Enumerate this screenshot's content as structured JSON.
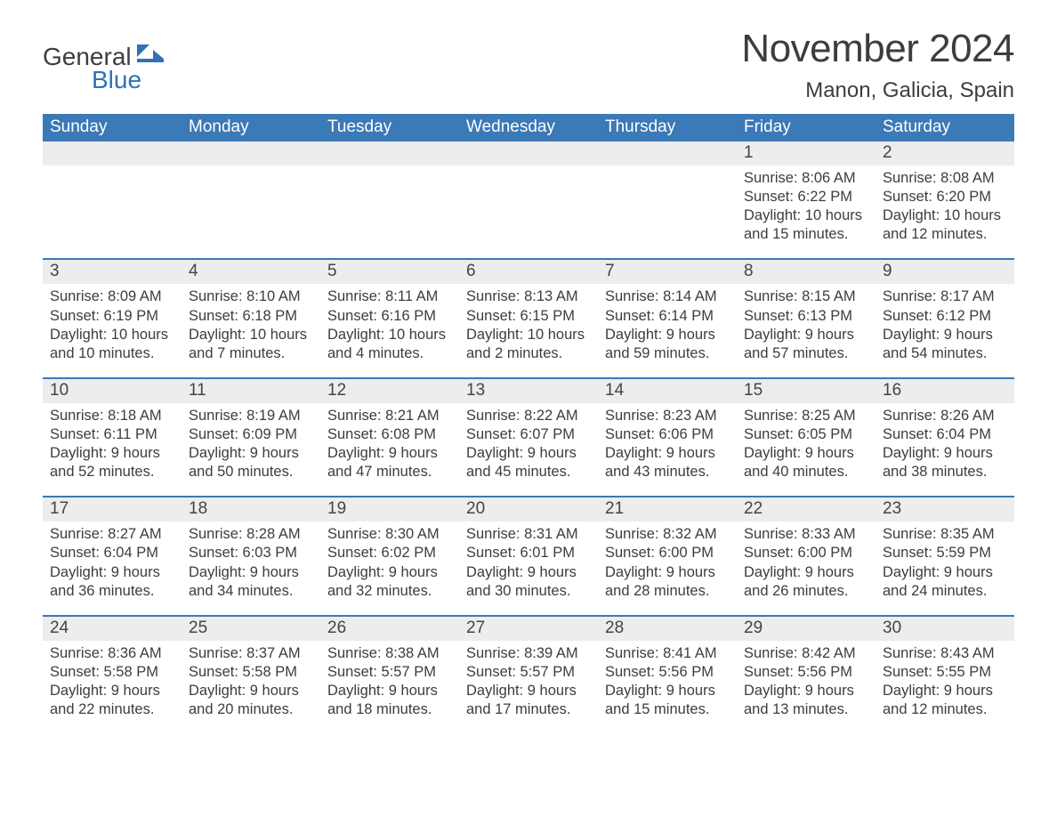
{
  "colors": {
    "header_bg": "#3b79b7",
    "header_text": "#ffffff",
    "daynum_bg": "#ededed",
    "daynum_text": "#444444",
    "body_text": "#3d3d3d",
    "week_border": "#3b79b7",
    "logo_dark": "#3d3d3d",
    "logo_blue": "#2e72b8",
    "page_bg": "#ffffff"
  },
  "logo": {
    "text_general": "General",
    "text_blue": "Blue"
  },
  "title": "November 2024",
  "location": "Manon, Galicia, Spain",
  "days_of_week": [
    "Sunday",
    "Monday",
    "Tuesday",
    "Wednesday",
    "Thursday",
    "Friday",
    "Saturday"
  ],
  "weeks": [
    [
      {
        "num": "",
        "sunrise": "",
        "sunset": "",
        "daylight": ""
      },
      {
        "num": "",
        "sunrise": "",
        "sunset": "",
        "daylight": ""
      },
      {
        "num": "",
        "sunrise": "",
        "sunset": "",
        "daylight": ""
      },
      {
        "num": "",
        "sunrise": "",
        "sunset": "",
        "daylight": ""
      },
      {
        "num": "",
        "sunrise": "",
        "sunset": "",
        "daylight": ""
      },
      {
        "num": "1",
        "sunrise": "Sunrise: 8:06 AM",
        "sunset": "Sunset: 6:22 PM",
        "daylight": "Daylight: 10 hours and 15 minutes."
      },
      {
        "num": "2",
        "sunrise": "Sunrise: 8:08 AM",
        "sunset": "Sunset: 6:20 PM",
        "daylight": "Daylight: 10 hours and 12 minutes."
      }
    ],
    [
      {
        "num": "3",
        "sunrise": "Sunrise: 8:09 AM",
        "sunset": "Sunset: 6:19 PM",
        "daylight": "Daylight: 10 hours and 10 minutes."
      },
      {
        "num": "4",
        "sunrise": "Sunrise: 8:10 AM",
        "sunset": "Sunset: 6:18 PM",
        "daylight": "Daylight: 10 hours and 7 minutes."
      },
      {
        "num": "5",
        "sunrise": "Sunrise: 8:11 AM",
        "sunset": "Sunset: 6:16 PM",
        "daylight": "Daylight: 10 hours and 4 minutes."
      },
      {
        "num": "6",
        "sunrise": "Sunrise: 8:13 AM",
        "sunset": "Sunset: 6:15 PM",
        "daylight": "Daylight: 10 hours and 2 minutes."
      },
      {
        "num": "7",
        "sunrise": "Sunrise: 8:14 AM",
        "sunset": "Sunset: 6:14 PM",
        "daylight": "Daylight: 9 hours and 59 minutes."
      },
      {
        "num": "8",
        "sunrise": "Sunrise: 8:15 AM",
        "sunset": "Sunset: 6:13 PM",
        "daylight": "Daylight: 9 hours and 57 minutes."
      },
      {
        "num": "9",
        "sunrise": "Sunrise: 8:17 AM",
        "sunset": "Sunset: 6:12 PM",
        "daylight": "Daylight: 9 hours and 54 minutes."
      }
    ],
    [
      {
        "num": "10",
        "sunrise": "Sunrise: 8:18 AM",
        "sunset": "Sunset: 6:11 PM",
        "daylight": "Daylight: 9 hours and 52 minutes."
      },
      {
        "num": "11",
        "sunrise": "Sunrise: 8:19 AM",
        "sunset": "Sunset: 6:09 PM",
        "daylight": "Daylight: 9 hours and 50 minutes."
      },
      {
        "num": "12",
        "sunrise": "Sunrise: 8:21 AM",
        "sunset": "Sunset: 6:08 PM",
        "daylight": "Daylight: 9 hours and 47 minutes."
      },
      {
        "num": "13",
        "sunrise": "Sunrise: 8:22 AM",
        "sunset": "Sunset: 6:07 PM",
        "daylight": "Daylight: 9 hours and 45 minutes."
      },
      {
        "num": "14",
        "sunrise": "Sunrise: 8:23 AM",
        "sunset": "Sunset: 6:06 PM",
        "daylight": "Daylight: 9 hours and 43 minutes."
      },
      {
        "num": "15",
        "sunrise": "Sunrise: 8:25 AM",
        "sunset": "Sunset: 6:05 PM",
        "daylight": "Daylight: 9 hours and 40 minutes."
      },
      {
        "num": "16",
        "sunrise": "Sunrise: 8:26 AM",
        "sunset": "Sunset: 6:04 PM",
        "daylight": "Daylight: 9 hours and 38 minutes."
      }
    ],
    [
      {
        "num": "17",
        "sunrise": "Sunrise: 8:27 AM",
        "sunset": "Sunset: 6:04 PM",
        "daylight": "Daylight: 9 hours and 36 minutes."
      },
      {
        "num": "18",
        "sunrise": "Sunrise: 8:28 AM",
        "sunset": "Sunset: 6:03 PM",
        "daylight": "Daylight: 9 hours and 34 minutes."
      },
      {
        "num": "19",
        "sunrise": "Sunrise: 8:30 AM",
        "sunset": "Sunset: 6:02 PM",
        "daylight": "Daylight: 9 hours and 32 minutes."
      },
      {
        "num": "20",
        "sunrise": "Sunrise: 8:31 AM",
        "sunset": "Sunset: 6:01 PM",
        "daylight": "Daylight: 9 hours and 30 minutes."
      },
      {
        "num": "21",
        "sunrise": "Sunrise: 8:32 AM",
        "sunset": "Sunset: 6:00 PM",
        "daylight": "Daylight: 9 hours and 28 minutes."
      },
      {
        "num": "22",
        "sunrise": "Sunrise: 8:33 AM",
        "sunset": "Sunset: 6:00 PM",
        "daylight": "Daylight: 9 hours and 26 minutes."
      },
      {
        "num": "23",
        "sunrise": "Sunrise: 8:35 AM",
        "sunset": "Sunset: 5:59 PM",
        "daylight": "Daylight: 9 hours and 24 minutes."
      }
    ],
    [
      {
        "num": "24",
        "sunrise": "Sunrise: 8:36 AM",
        "sunset": "Sunset: 5:58 PM",
        "daylight": "Daylight: 9 hours and 22 minutes."
      },
      {
        "num": "25",
        "sunrise": "Sunrise: 8:37 AM",
        "sunset": "Sunset: 5:58 PM",
        "daylight": "Daylight: 9 hours and 20 minutes."
      },
      {
        "num": "26",
        "sunrise": "Sunrise: 8:38 AM",
        "sunset": "Sunset: 5:57 PM",
        "daylight": "Daylight: 9 hours and 18 minutes."
      },
      {
        "num": "27",
        "sunrise": "Sunrise: 8:39 AM",
        "sunset": "Sunset: 5:57 PM",
        "daylight": "Daylight: 9 hours and 17 minutes."
      },
      {
        "num": "28",
        "sunrise": "Sunrise: 8:41 AM",
        "sunset": "Sunset: 5:56 PM",
        "daylight": "Daylight: 9 hours and 15 minutes."
      },
      {
        "num": "29",
        "sunrise": "Sunrise: 8:42 AM",
        "sunset": "Sunset: 5:56 PM",
        "daylight": "Daylight: 9 hours and 13 minutes."
      },
      {
        "num": "30",
        "sunrise": "Sunrise: 8:43 AM",
        "sunset": "Sunset: 5:55 PM",
        "daylight": "Daylight: 9 hours and 12 minutes."
      }
    ]
  ]
}
